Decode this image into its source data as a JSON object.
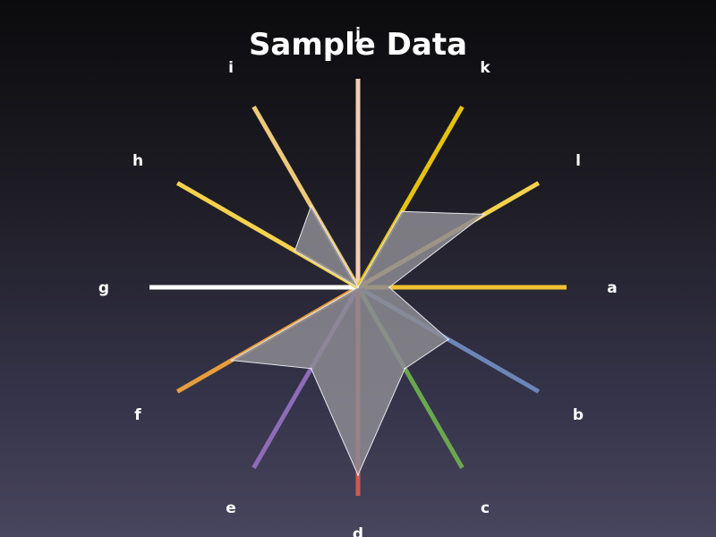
{
  "chart_data": {
    "type": "radar",
    "title": "Sample Data",
    "categories": [
      "a",
      "b",
      "c",
      "d",
      "e",
      "f",
      "g",
      "h",
      "i",
      "j",
      "k",
      "l"
    ],
    "values": [
      0.15,
      0.5,
      0.45,
      0.9,
      0.45,
      0.7,
      0.0,
      0.35,
      0.45,
      0.0,
      0.42,
      0.7
    ],
    "range": [
      0,
      1
    ],
    "polygon_fill": "#8c8b92",
    "polygon_stroke": "#e8e8ee",
    "spoke_colors": [
      "#f1c232",
      "#6b86b8",
      "#6aa84f",
      "#cc5b4e",
      "#8e6cb8",
      "#e69d3c",
      "#ffffff",
      "#f4d24e",
      "#ecc97a",
      "#f4cdb4",
      "#e6c20f",
      "#f4d24e"
    ],
    "grid": false,
    "legend": "none"
  }
}
